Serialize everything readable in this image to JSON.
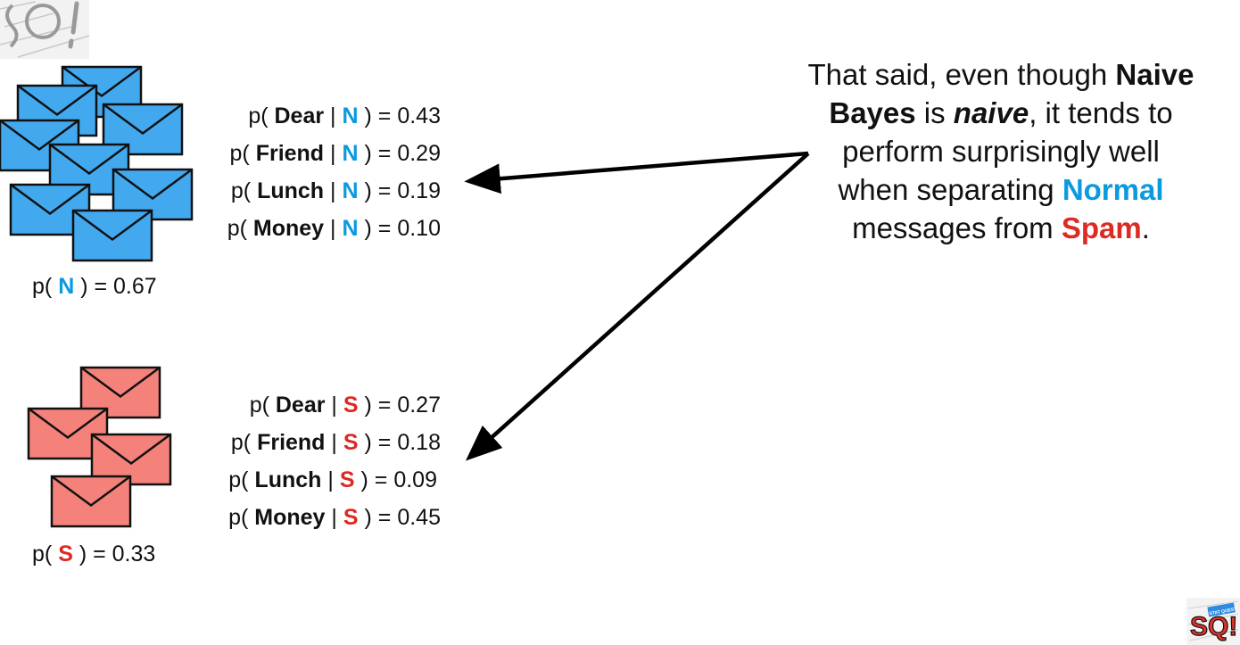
{
  "normal": {
    "prior": {
      "prefix": "p(",
      "cls": "N",
      "suffix": ") = 0.67"
    },
    "likelihoods": [
      {
        "prefix": "p(",
        "word": "Dear",
        "sep": "|",
        "cls": "N",
        "suffix": ") = 0.43"
      },
      {
        "prefix": "p(",
        "word": "Friend",
        "sep": "|",
        "cls": "N",
        "suffix": ") = 0.29"
      },
      {
        "prefix": "p(",
        "word": "Lunch",
        "sep": "|",
        "cls": "N",
        "suffix": ") = 0.19"
      },
      {
        "prefix": "p(",
        "word": "Money",
        "sep": "|",
        "cls": "N",
        "suffix": ") = 0.10"
      }
    ]
  },
  "spam": {
    "prior": {
      "prefix": "p(",
      "cls": "S",
      "suffix": ") = 0.33"
    },
    "likelihoods": [
      {
        "prefix": "p(",
        "word": "Dear",
        "sep": "|",
        "cls": "S",
        "suffix": ") = 0.27"
      },
      {
        "prefix": "p(",
        "word": "Friend",
        "sep": "|",
        "cls": "S",
        "suffix": ") = 0.18"
      },
      {
        "prefix": "p(",
        "word": "Lunch",
        "sep": "|",
        "cls": "S",
        "suffix": ") = 0.09"
      },
      {
        "prefix": "p(",
        "word": "Money",
        "sep": "|",
        "cls": "S",
        "suffix": ") = 0.45"
      }
    ]
  },
  "callout": {
    "t1": "That said, even though",
    "naive_bayes_1": "Naive",
    "naive_bayes_2": "Bayes",
    "t2": "is",
    "naive": "naive",
    "t3": ", it tends to",
    "t4": "perform surprisingly well",
    "t5": "when separating",
    "normal": "Normal",
    "t6": "messages from",
    "spam": "Spam",
    "t7": "."
  },
  "logo": {
    "big": "SQ!",
    "tag": "STAT QUEST"
  },
  "colors": {
    "normal": "#0a9ae0",
    "normal_envelope": "#42a9ef",
    "spam": "#dd2a22",
    "spam_envelope": "#f4827a",
    "text": "#111111",
    "arrow": "#000000"
  },
  "icons": [
    "envelope-icon",
    "statquest-logo-icon",
    "arrow-icon"
  ]
}
